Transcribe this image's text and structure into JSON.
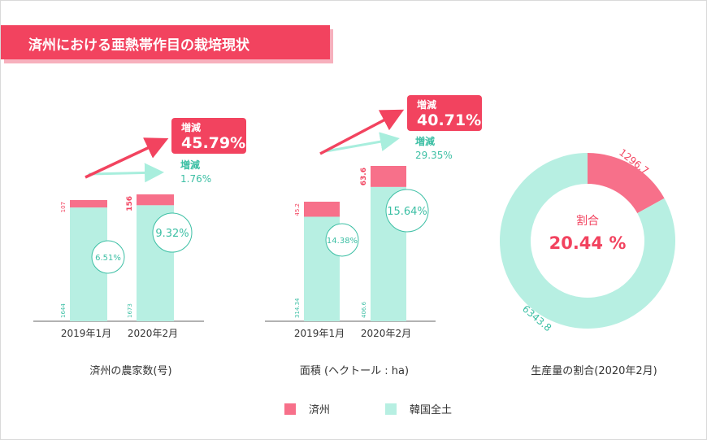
{
  "title": "済州における亜熱帯作目の栽培現状",
  "colors": {
    "jeju": "#f7708a",
    "national": "#b7efe2",
    "accent": "#f2435f",
    "teal": "#3cbfa4",
    "arrow_teal": "#a8eedd"
  },
  "legend": {
    "jeju": "済州",
    "national": "韓国全土"
  },
  "chart_data": [
    {
      "type": "bar",
      "caption": "済州の農家数(号)",
      "categories": [
        "2019年1月",
        "2020年2月"
      ],
      "series": [
        {
          "name": "韓国全土",
          "values": [
            1644,
            1673
          ],
          "labels": [
            "1644",
            "1673"
          ]
        },
        {
          "name": "済州",
          "values": [
            107,
            156
          ],
          "labels": [
            "107",
            "156"
          ]
        }
      ],
      "ratios": [
        "6.51%",
        "9.32%"
      ],
      "change_jeju": {
        "label": "増減",
        "value": "45.79%"
      },
      "change_national": {
        "label": "増減",
        "value": "1.76%"
      }
    },
    {
      "type": "bar",
      "caption": "面積 (ヘクトール : ha)",
      "categories": [
        "2019年1月",
        "2020年2月"
      ],
      "series": [
        {
          "name": "韓国全土",
          "values": [
            314.34,
            406.6
          ],
          "labels": [
            "314.34",
            "406.6"
          ]
        },
        {
          "name": "済州",
          "values": [
            45.2,
            63.6
          ],
          "labels": [
            "45.2",
            "63.6"
          ]
        }
      ],
      "ratios": [
        "14.38%",
        "15.64%"
      ],
      "change_jeju": {
        "label": "増減",
        "value": "40.71%"
      },
      "change_national": {
        "label": "増減",
        "value": "29.35%"
      }
    },
    {
      "type": "pie",
      "caption": "生産量の割合(2020年2月)",
      "values": [
        1296.7,
        6343.8
      ],
      "labels": [
        "1296.7",
        "6343.8"
      ],
      "center_label": "割合",
      "center_value": "20.44 %"
    }
  ]
}
